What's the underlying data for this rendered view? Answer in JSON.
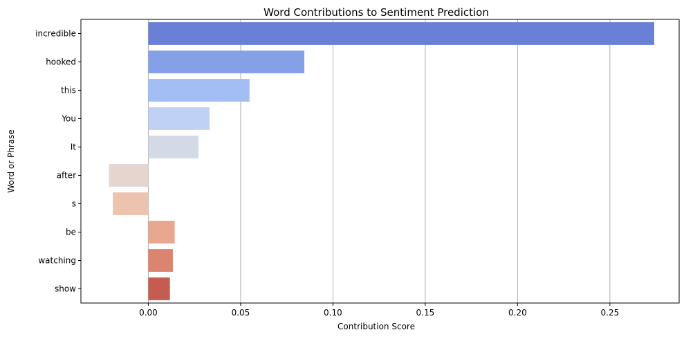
{
  "chart_data": {
    "type": "bar",
    "orientation": "horizontal",
    "title": "Word Contributions to Sentiment Prediction",
    "xlabel": "Contribution Score",
    "ylabel": "Word or Phrase",
    "xlim": [
      -0.0365,
      0.2875
    ],
    "x_ticks": [
      0.0,
      0.05,
      0.1,
      0.15,
      0.2,
      0.25
    ],
    "x_tick_labels": [
      "0.00",
      "0.05",
      "0.10",
      "0.15",
      "0.20",
      "0.25"
    ],
    "grid": "vertical",
    "categories": [
      "incredible",
      "hooked",
      "this",
      "You",
      "It",
      "after",
      "s",
      "be",
      "watching",
      "show"
    ],
    "values": [
      0.274,
      0.0845,
      0.0548,
      0.0332,
      0.0272,
      -0.0213,
      -0.0192,
      0.0143,
      0.0133,
      0.0117
    ],
    "colors": [
      "#6a80d6",
      "#84a0e7",
      "#a3bdf5",
      "#bfd1f4",
      "#d4d9e6",
      "#e4d6cf",
      "#ecc3ae",
      "#e8a78f",
      "#db8470",
      "#c65c50"
    ]
  }
}
